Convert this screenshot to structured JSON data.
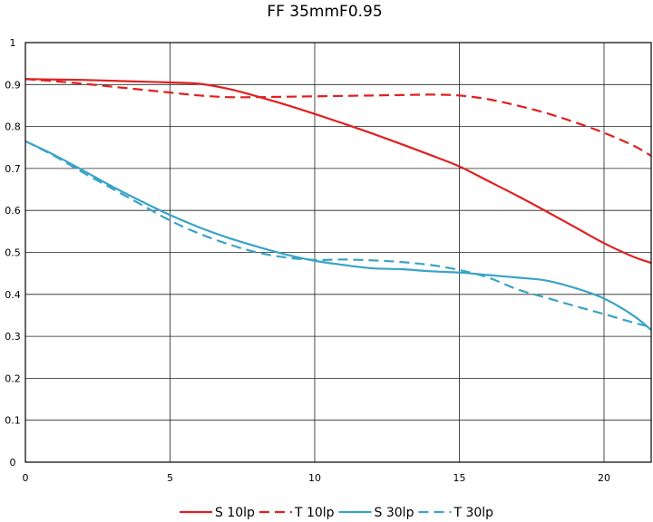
{
  "chart_data": {
    "type": "line",
    "title": "FF 35mmF0.95",
    "xlabel": "",
    "ylabel": "",
    "xlim": [
      0,
      21.63
    ],
    "ylim": [
      0,
      1
    ],
    "grid": true,
    "legend_position": "bottom",
    "x_ticks": [
      "0",
      "5",
      "10",
      "15",
      "20"
    ],
    "y_ticks": [
      "0",
      "0.1",
      "0.2",
      "0.3",
      "0.4",
      "0.5",
      "0.6",
      "0.7",
      "0.8",
      "0.9",
      "1"
    ],
    "series": [
      {
        "name": "S 10lp",
        "color": "#e02020",
        "dash": "solid",
        "x": [
          0,
          1,
          2,
          3,
          4,
          5,
          6,
          7,
          8,
          9,
          10,
          11,
          12,
          13,
          14,
          15,
          16,
          17,
          18,
          19,
          20,
          21,
          21.63
        ],
        "y": [
          0.913,
          0.912,
          0.911,
          0.909,
          0.907,
          0.905,
          0.902,
          0.89,
          0.872,
          0.852,
          0.83,
          0.807,
          0.783,
          0.758,
          0.732,
          0.705,
          0.67,
          0.635,
          0.598,
          0.56,
          0.522,
          0.49,
          0.475
        ]
      },
      {
        "name": "T 10lp",
        "color": "#e02020",
        "dash": "dashed",
        "x": [
          0,
          1,
          2,
          3,
          4,
          5,
          6,
          7,
          8,
          9,
          10,
          11,
          12,
          13,
          14,
          15,
          16,
          17,
          18,
          19,
          20,
          21,
          21.63
        ],
        "y": [
          0.913,
          0.908,
          0.902,
          0.895,
          0.888,
          0.881,
          0.874,
          0.87,
          0.87,
          0.871,
          0.872,
          0.873,
          0.874,
          0.875,
          0.876,
          0.874,
          0.865,
          0.85,
          0.832,
          0.81,
          0.785,
          0.755,
          0.73
        ]
      },
      {
        "name": "S 30lp",
        "color": "#3aa3c7",
        "dash": "solid",
        "x": [
          0,
          1,
          2,
          3,
          4,
          5,
          6,
          7,
          8,
          9,
          10,
          11,
          12,
          13,
          14,
          15,
          16,
          17,
          18,
          19,
          20,
          21,
          21.63
        ],
        "y": [
          0.765,
          0.732,
          0.695,
          0.657,
          0.622,
          0.589,
          0.56,
          0.535,
          0.514,
          0.495,
          0.48,
          0.47,
          0.462,
          0.46,
          0.455,
          0.452,
          0.446,
          0.44,
          0.433,
          0.415,
          0.39,
          0.35,
          0.315
        ]
      },
      {
        "name": "T 30lp",
        "color": "#3aa3c7",
        "dash": "dashed",
        "x": [
          0,
          1,
          2,
          3,
          4,
          5,
          6,
          7,
          8,
          9,
          10,
          11,
          12,
          13,
          14,
          15,
          16,
          17,
          18,
          19,
          20,
          21,
          21.63
        ],
        "y": [
          0.765,
          0.73,
          0.69,
          0.652,
          0.614,
          0.576,
          0.545,
          0.52,
          0.5,
          0.488,
          0.482,
          0.483,
          0.481,
          0.477,
          0.47,
          0.458,
          0.44,
          0.412,
          0.392,
          0.372,
          0.353,
          0.333,
          0.322
        ]
      }
    ]
  }
}
